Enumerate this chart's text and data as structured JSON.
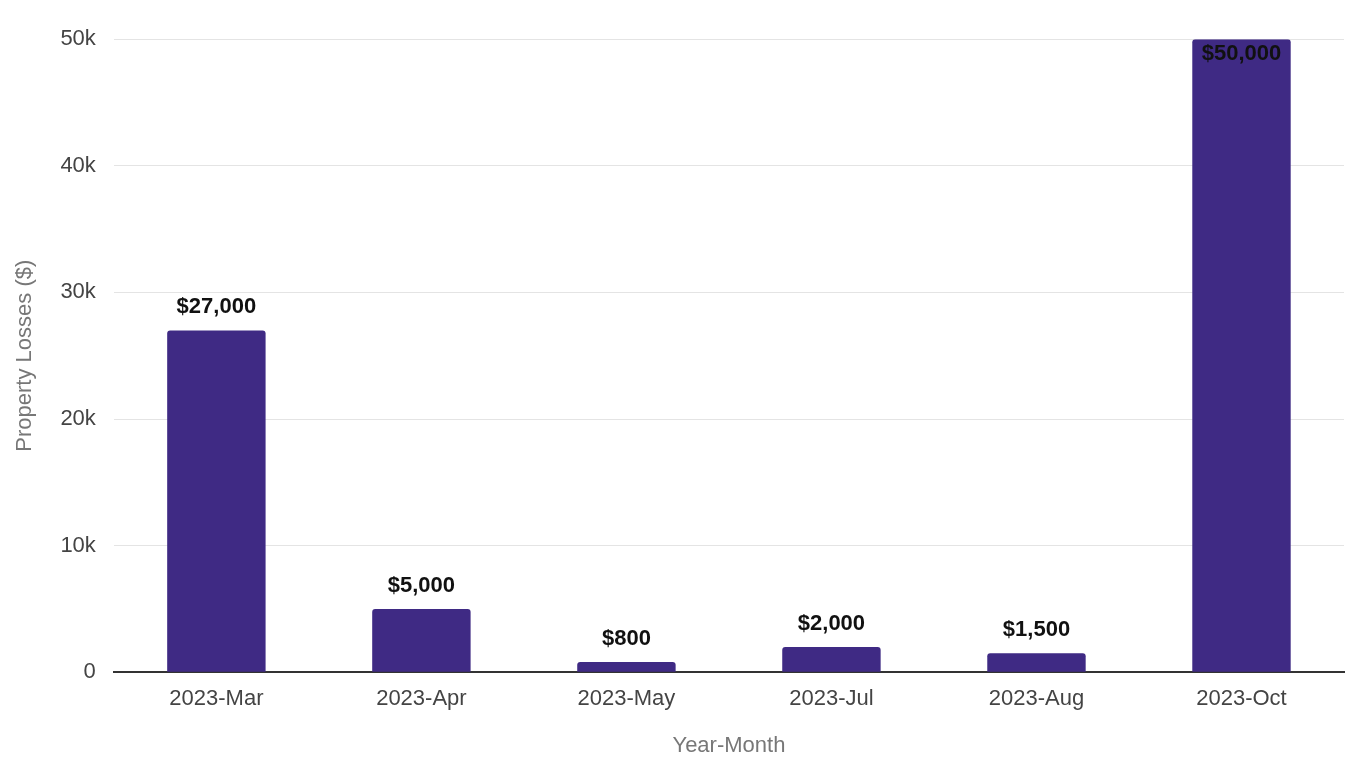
{
  "chart_data": {
    "type": "bar",
    "xlabel": "Year-Month",
    "ylabel": "Property Losses ($)",
    "categories": [
      "2023-Mar",
      "2023-Apr",
      "2023-May",
      "2023-Jul",
      "2023-Aug",
      "2023-Oct"
    ],
    "values": [
      27000,
      5000,
      800,
      2000,
      1500,
      50000
    ],
    "value_labels": [
      "$27,000",
      "$5,000",
      "$800",
      "$2,000",
      "$1,500",
      "$50,000"
    ],
    "color": "#3f2a84",
    "ylim": [
      0,
      50000
    ],
    "yticks": [
      {
        "value": 0,
        "label": "0"
      },
      {
        "value": 10000,
        "label": "10k"
      },
      {
        "value": 20000,
        "label": "20k"
      },
      {
        "value": 30000,
        "label": "30k"
      },
      {
        "value": 40000,
        "label": "40k"
      },
      {
        "value": 50000,
        "label": "50k"
      }
    ],
    "grid": "y",
    "legend": false
  }
}
